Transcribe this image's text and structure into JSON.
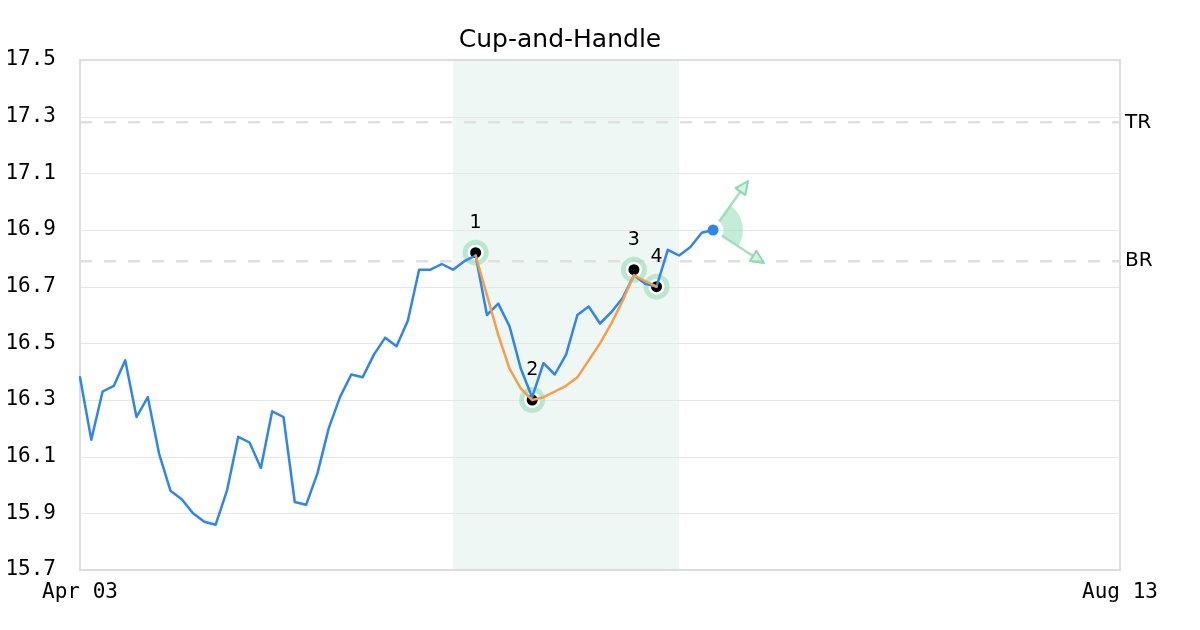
{
  "chart_data": {
    "type": "line",
    "title": "Cup-and-Handle",
    "categories": [
      "Apr 03",
      null,
      null,
      null,
      null,
      null,
      null,
      null,
      null,
      null,
      null,
      null,
      null,
      null,
      null,
      null,
      null,
      null,
      null,
      null,
      null,
      null,
      null,
      null,
      null,
      null,
      null,
      null,
      null,
      null,
      null,
      null,
      null,
      null,
      null,
      null,
      null,
      null,
      null,
      null,
      null,
      null,
      null,
      null,
      null,
      null,
      null,
      null,
      null,
      null,
      null,
      null,
      null,
      null,
      null,
      null,
      null,
      null,
      null,
      null,
      null,
      null,
      null,
      null,
      null,
      null,
      null,
      null,
      null,
      null,
      null,
      null,
      null,
      null,
      null,
      null,
      null,
      null,
      null,
      null,
      null,
      null,
      null,
      null,
      null,
      null,
      null,
      null,
      null,
      null,
      null,
      null,
      "Aug 13"
    ],
    "ylim": [
      15.7,
      17.5
    ],
    "yticks": [
      15.7,
      15.9,
      16.1,
      16.3,
      16.5,
      16.7,
      16.9,
      17.1,
      17.3,
      17.5
    ],
    "grid": "y",
    "series": [
      {
        "color": "#2e86e8",
        "marker": "none",
        "values": [
          16.38,
          16.16,
          16.33,
          16.35,
          16.44,
          16.24,
          16.31,
          16.11,
          15.98,
          15.95,
          15.9,
          15.87,
          15.86,
          15.98,
          16.17,
          16.15,
          16.06,
          16.26,
          16.24,
          15.94,
          15.93,
          16.04,
          16.2,
          16.31,
          16.39,
          16.38,
          16.46,
          16.52,
          16.49,
          16.58,
          16.76,
          16.76,
          16.78,
          16.76,
          16.79,
          16.81,
          16.6,
          16.64,
          16.56,
          16.41,
          16.31,
          16.43,
          16.39,
          16.46,
          16.6,
          16.63,
          16.57,
          16.61,
          16.66,
          16.74,
          16.71,
          16.7,
          16.83,
          16.81,
          16.84,
          16.89,
          16.9,
          null,
          null,
          null,
          null,
          null,
          null,
          null,
          null,
          null,
          null,
          null,
          null,
          null,
          null,
          null,
          null,
          null,
          null,
          null,
          null,
          null,
          null,
          null,
          null,
          null,
          null,
          null,
          null,
          null,
          null,
          null,
          null,
          null,
          null,
          null,
          null
        ]
      },
      {
        "type": "line",
        "color": "#f89d48",
        "marker": "none",
        "values": [
          null,
          null,
          null,
          null,
          null,
          null,
          null,
          null,
          null,
          null,
          null,
          null,
          null,
          null,
          null,
          null,
          null,
          null,
          null,
          null,
          null,
          null,
          null,
          null,
          null,
          null,
          null,
          null,
          null,
          null,
          null,
          null,
          null,
          null,
          null,
          16.81,
          16.67,
          16.53,
          16.41,
          16.34,
          16.3,
          16.31,
          16.33,
          16.35,
          16.38,
          16.44,
          16.5,
          16.57,
          16.65,
          16.74,
          16.72,
          16.7,
          null,
          null,
          null,
          null,
          null,
          null,
          null,
          null,
          null,
          null,
          null,
          null,
          null,
          null,
          null,
          null,
          null,
          null,
          null,
          null,
          null,
          null,
          null,
          null,
          null,
          null,
          null,
          null,
          null,
          null,
          null,
          null,
          null,
          null,
          null,
          null,
          null,
          null,
          null,
          null,
          null
        ]
      },
      {
        "type": "scatter",
        "color": "#000000",
        "marker": "circle",
        "values": [
          null,
          null,
          null,
          null,
          null,
          null,
          null,
          null,
          null,
          null,
          null,
          null,
          null,
          null,
          null,
          null,
          null,
          null,
          null,
          null,
          null,
          null,
          null,
          null,
          null,
          null,
          null,
          null,
          null,
          null,
          null,
          null,
          null,
          null,
          null,
          16.82,
          null,
          null,
          null,
          null,
          16.3,
          null,
          null,
          null,
          null,
          null,
          null,
          null,
          null,
          16.76,
          null,
          16.7,
          null,
          null,
          null,
          null,
          null,
          null,
          null,
          null,
          null,
          null,
          null,
          null,
          null,
          null,
          null,
          null,
          null,
          null,
          null,
          null,
          null,
          null,
          null,
          null,
          null,
          null,
          null,
          null,
          null,
          null,
          null,
          null,
          null,
          null,
          null,
          null,
          null,
          null,
          null,
          null,
          null
        ]
      },
      {
        "type": "scatter",
        "color": "#2e86e8",
        "marker": "circle",
        "values": [
          null,
          null,
          null,
          null,
          null,
          null,
          null,
          null,
          null,
          null,
          null,
          null,
          null,
          null,
          null,
          null,
          null,
          null,
          null,
          null,
          null,
          null,
          null,
          null,
          null,
          null,
          null,
          null,
          null,
          null,
          null,
          null,
          null,
          null,
          null,
          null,
          null,
          null,
          null,
          null,
          null,
          null,
          null,
          null,
          null,
          null,
          null,
          null,
          null,
          null,
          null,
          null,
          null,
          null,
          null,
          null,
          16.9,
          null,
          null,
          null,
          null,
          null,
          null,
          null,
          null,
          null,
          null,
          null,
          null,
          null,
          null,
          null,
          null,
          null,
          null,
          null,
          null,
          null,
          null,
          null,
          null,
          null,
          null,
          null,
          null,
          null,
          null,
          null,
          null,
          null,
          null,
          null,
          null
        ]
      }
    ],
    "ref_lines": [
      {
        "axis": "y",
        "value": 17.28,
        "label": "TR",
        "color": "#e0e0e0",
        "line_style": "dashed"
      },
      {
        "axis": "y",
        "value": 16.79,
        "label": "BR",
        "color": "#e0e0e0",
        "line_style": "dashed"
      }
    ],
    "annotations": [
      {
        "text": "1",
        "y": 16.82
      },
      {
        "text": "2",
        "y": 16.3
      },
      {
        "text": "3",
        "y": 16.76
      },
      {
        "text": "4",
        "y": 16.7
      }
    ]
  }
}
